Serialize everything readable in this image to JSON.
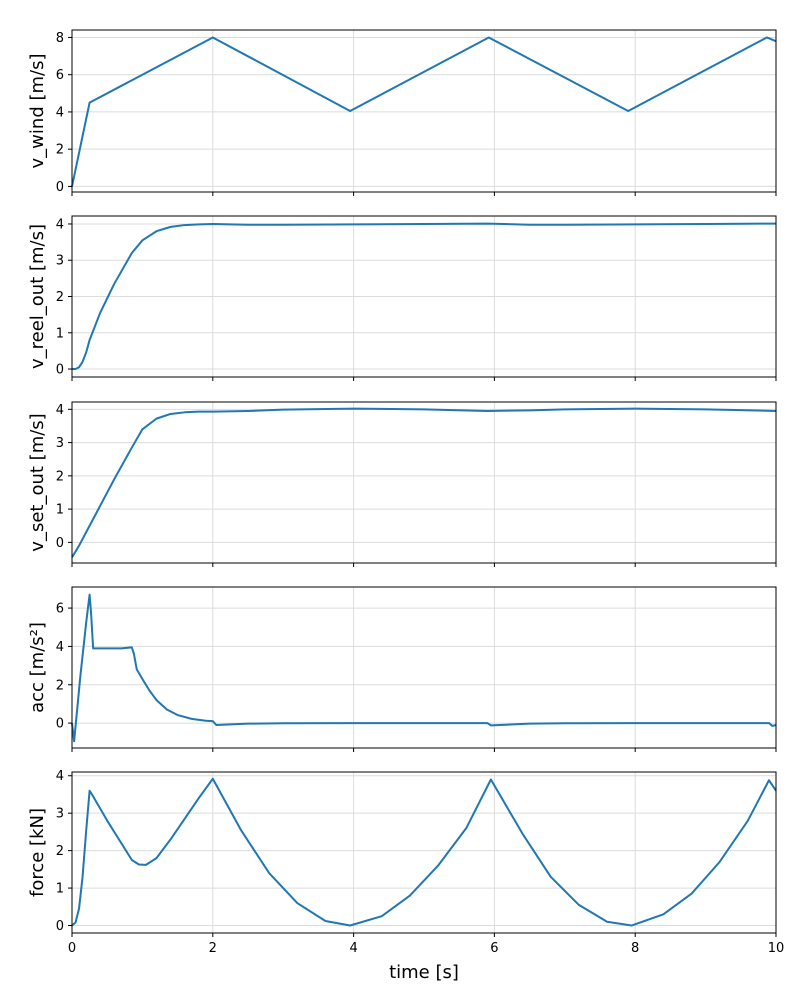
{
  "figure": {
    "xlabel": "time [s]"
  },
  "chart_data": [
    {
      "type": "line",
      "ylabel": "v_wind [m/s]",
      "xlim": [
        0,
        10
      ],
      "ylim": [
        -0.3,
        8.4
      ],
      "xticks": [
        0,
        2,
        4,
        6,
        8,
        10
      ],
      "yticks": [
        0,
        2,
        4,
        6,
        8
      ],
      "grid": true,
      "color": "#1f77b4",
      "series": [
        {
          "x": [
            0,
            0.05,
            0.1,
            0.15,
            0.2,
            0.25,
            2,
            3.95,
            5.92,
            7.9,
            9.87,
            10
          ],
          "y": [
            0,
            0.9,
            1.8,
            2.7,
            3.6,
            4.5,
            8.0,
            4.05,
            8.0,
            4.05,
            8.0,
            7.8
          ]
        }
      ]
    },
    {
      "type": "line",
      "ylabel": "v_reel_out [m/s]",
      "xlim": [
        0,
        10
      ],
      "ylim": [
        -0.22,
        4.22
      ],
      "xticks": [
        0,
        2,
        4,
        6,
        8,
        10
      ],
      "yticks": [
        0,
        1,
        2,
        3,
        4
      ],
      "grid": true,
      "color": "#1f77b4",
      "series": [
        {
          "x": [
            0,
            0.05,
            0.1,
            0.15,
            0.2,
            0.25,
            0.4,
            0.6,
            0.85,
            1.0,
            1.2,
            1.4,
            1.6,
            1.8,
            2.0,
            2.5,
            3.0,
            4.0,
            5.0,
            5.9,
            6.5,
            7.0,
            8.0,
            9.0,
            10.0
          ],
          "y": [
            0,
            0,
            0.05,
            0.2,
            0.45,
            0.8,
            1.55,
            2.35,
            3.2,
            3.55,
            3.8,
            3.92,
            3.97,
            3.99,
            4.0,
            3.98,
            3.98,
            3.99,
            4.0,
            4.01,
            3.98,
            3.98,
            3.99,
            4.0,
            4.01
          ]
        }
      ]
    },
    {
      "type": "line",
      "ylabel": "v_set_out [m/s]",
      "xlim": [
        0,
        10
      ],
      "ylim": [
        -0.62,
        4.22
      ],
      "xticks": [
        0,
        2,
        4,
        6,
        8,
        10
      ],
      "yticks": [
        0,
        1,
        2,
        3,
        4
      ],
      "grid": true,
      "color": "#1f77b4",
      "series": [
        {
          "x": [
            0,
            0.1,
            0.2,
            0.4,
            0.6,
            0.85,
            1.0,
            1.2,
            1.4,
            1.6,
            1.8,
            2.0,
            2.5,
            3.0,
            4.0,
            5.0,
            5.9,
            6.5,
            7.0,
            8.0,
            9.0,
            10.0
          ],
          "y": [
            -0.45,
            -0.1,
            0.3,
            1.1,
            1.9,
            2.85,
            3.4,
            3.72,
            3.86,
            3.91,
            3.93,
            3.93,
            3.95,
            3.99,
            4.02,
            4.0,
            3.95,
            3.97,
            4.0,
            4.02,
            4.0,
            3.95
          ]
        }
      ]
    },
    {
      "type": "line",
      "ylabel": "acc [m/s²]",
      "xlim": [
        0,
        10
      ],
      "ylim": [
        -1.3,
        7.1
      ],
      "xticks": [
        0,
        2,
        4,
        6,
        8,
        10
      ],
      "yticks": [
        0,
        2,
        4,
        6
      ],
      "grid": true,
      "color": "#1f77b4",
      "series": [
        {
          "x": [
            0,
            0.03,
            0.06,
            0.12,
            0.2,
            0.25,
            0.27,
            0.3,
            0.5,
            0.7,
            0.85,
            0.88,
            0.92,
            1.0,
            1.1,
            1.2,
            1.35,
            1.5,
            1.7,
            1.9,
            2.0,
            2.05,
            2.5,
            3.0,
            4.0,
            5.0,
            5.9,
            5.95,
            6.5,
            7.0,
            8.0,
            9.0,
            9.9,
            9.95,
            10.0
          ],
          "y": [
            0,
            -0.95,
            0.2,
            2.5,
            5.2,
            6.7,
            5.8,
            3.9,
            3.9,
            3.9,
            3.95,
            3.6,
            2.8,
            2.3,
            1.7,
            1.2,
            0.7,
            0.42,
            0.22,
            0.12,
            0.1,
            -0.1,
            -0.03,
            -0.01,
            0.0,
            0.0,
            0.0,
            -0.12,
            -0.03,
            -0.01,
            0.0,
            0.0,
            0.0,
            -0.15,
            -0.1
          ]
        }
      ]
    },
    {
      "type": "line",
      "ylabel": "force [kN]",
      "xlim": [
        0,
        10
      ],
      "ylim": [
        -0.2,
        4.1
      ],
      "xticks": [
        0,
        2,
        4,
        6,
        8,
        10
      ],
      "yticks": [
        0,
        1,
        2,
        3,
        4
      ],
      "grid": true,
      "color": "#1f77b4",
      "series": [
        {
          "x": [
            0,
            0.05,
            0.1,
            0.15,
            0.2,
            0.25,
            0.3,
            0.5,
            0.7,
            0.85,
            0.95,
            1.05,
            1.2,
            1.4,
            1.6,
            1.8,
            2.0,
            2.4,
            2.8,
            3.2,
            3.6,
            3.95,
            4.4,
            4.8,
            5.2,
            5.6,
            5.95,
            6.4,
            6.8,
            7.2,
            7.6,
            7.95,
            8.4,
            8.8,
            9.2,
            9.6,
            9.9,
            10.0
          ],
          "y": [
            0,
            0.08,
            0.45,
            1.3,
            2.5,
            3.6,
            3.45,
            2.8,
            2.2,
            1.75,
            1.63,
            1.62,
            1.8,
            2.3,
            2.85,
            3.4,
            3.92,
            2.55,
            1.4,
            0.6,
            0.12,
            0.0,
            0.25,
            0.8,
            1.6,
            2.6,
            3.9,
            2.45,
            1.3,
            0.55,
            0.1,
            0.0,
            0.3,
            0.85,
            1.7,
            2.8,
            3.88,
            3.6
          ]
        }
      ]
    }
  ]
}
